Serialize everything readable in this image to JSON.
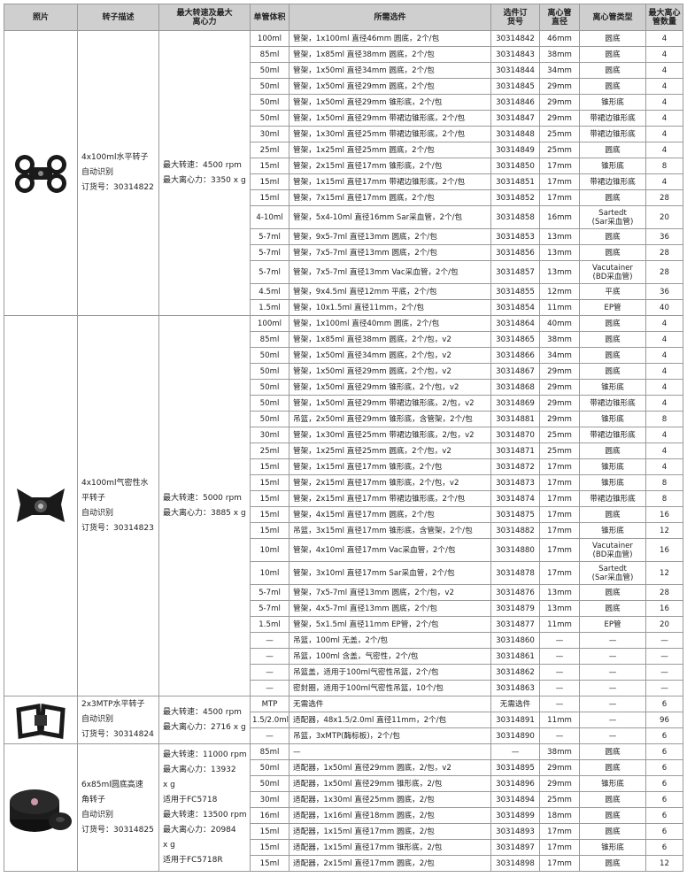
{
  "headers": [
    "照片",
    "转子描述",
    "最大转速及最大\n离心力",
    "单管体积",
    "所需选件",
    "选件订\n货号",
    "离心管\n直径",
    "离心管类型",
    "最大离心\n管数量"
  ],
  "groups": [
    {
      "photo_icon": "swing-bucket-rotor-4x100ml-image",
      "desc": "4x100ml水平转子\n自动识别\n订货号：30314822",
      "speed": "最大转速：4500 rpm\n最大离心力：3350 x g",
      "rows": [
        [
          "100ml",
          "管架，1x100ml 直径46mm 圆底，2个/包",
          "30314842",
          "46mm",
          "圆底",
          "4"
        ],
        [
          "85ml",
          "管架，1x85ml 直径38mm 圆底，2个/包",
          "30314843",
          "38mm",
          "圆底",
          "4"
        ],
        [
          "50ml",
          "管架，1x50ml 直径34mm 圆底，2个/包",
          "30314844",
          "34mm",
          "圆底",
          "4"
        ],
        [
          "50ml",
          "管架，1x50ml 直径29mm 圆底，2个/包",
          "30314845",
          "29mm",
          "圆底",
          "4"
        ],
        [
          "50ml",
          "管架，1x50ml 直径29mm 锥形底，2个/包",
          "30314846",
          "29mm",
          "锥形底",
          "4"
        ],
        [
          "50ml",
          "管架，1x50ml 直径29mm 带裙边锥形底，2个/包",
          "30314847",
          "29mm",
          "带裙边锥形底",
          "4"
        ],
        [
          "30ml",
          "管架，1x30ml 直径25mm 带裙边锥形底，2个/包",
          "30314848",
          "25mm",
          "带裙边锥形底",
          "4"
        ],
        [
          "25ml",
          "管架，1x25ml 直径25mm 圆底，2个/包",
          "30314849",
          "25mm",
          "圆底",
          "4"
        ],
        [
          "15ml",
          "管架，2x15ml 直径17mm 锥形底，2个/包",
          "30314850",
          "17mm",
          "锥形底",
          "8"
        ],
        [
          "15ml",
          "管架，1x15ml 直径17mm 带裙边锥形底，2个/包",
          "30314851",
          "17mm",
          "带裙边锥形底",
          "4"
        ],
        [
          "15ml",
          "管架，7x15ml 直径17mm 圆底，2个/包",
          "30314852",
          "17mm",
          "圆底",
          "28"
        ],
        [
          "4-10ml",
          "管架，5x4-10ml 直径16mm Sar采血管，2个/包",
          "30314858",
          "16mm",
          "Sartedt\n(Sar采血管)",
          "20"
        ],
        [
          "5-7ml",
          "管架，9x5-7ml 直径13mm 圆底，2个/包",
          "30314853",
          "13mm",
          "圆底",
          "36"
        ],
        [
          "5-7ml",
          "管架，7x5-7ml 直径13mm 圆底，2个/包",
          "30314856",
          "13mm",
          "圆底",
          "28"
        ],
        [
          "5-7ml",
          "管架，7x5-7ml 直径13mm Vac采血管，2个/包",
          "30314857",
          "13mm",
          "Vacutainer\n(BD采血管)",
          "28"
        ],
        [
          "4.5ml",
          "管架，9x4.5ml 直径12mm 平底，2个/包",
          "30314855",
          "12mm",
          "平底",
          "36"
        ],
        [
          "1.5ml",
          "管架，10x1.5ml 直径11mm，2个/包",
          "30314854",
          "11mm",
          "EP管",
          "40"
        ]
      ]
    },
    {
      "photo_icon": "aerosol-tight-rotor-image",
      "desc": "4x100ml气密性水\n平转子\n自动识别\n订货号：30314823",
      "speed": "最大转速：5000 rpm\n最大离心力：3885 x g",
      "rows": [
        [
          "100ml",
          "管架，1x100ml 直径40mm 圆底，2个/包",
          "30314864",
          "40mm",
          "圆底",
          "4"
        ],
        [
          "85ml",
          "管架，1x85ml 直径38mm 圆底，2个/包，v2",
          "30314865",
          "38mm",
          "圆底",
          "4"
        ],
        [
          "50ml",
          "管架，1x50ml 直径34mm 圆底，2个/包，v2",
          "30314866",
          "34mm",
          "圆底",
          "4"
        ],
        [
          "50ml",
          "管架，1x50ml 直径29mm 圆底，2个/包，v2",
          "30314867",
          "29mm",
          "圆底",
          "4"
        ],
        [
          "50ml",
          "管架，1x50ml 直径29mm 锥形底，2个/包，v2",
          "30314868",
          "29mm",
          "锥形底",
          "4"
        ],
        [
          "50ml",
          "管架，1x50ml 直径29mm 带裙边锥形底，2/包，v2",
          "30314869",
          "29mm",
          "带裙边锥形底",
          "4"
        ],
        [
          "50ml",
          "吊篮，2x50ml 直径29mm 锥形底，含管架，2个/包",
          "30314881",
          "29mm",
          "锥形底",
          "8"
        ],
        [
          "30ml",
          "管架，1x30ml 直径25mm 带裙边锥形底，2/包，v2",
          "30314870",
          "25mm",
          "带裙边锥形底",
          "4"
        ],
        [
          "25ml",
          "管架，1x25ml 直径25mm 圆底，2个/包，v2",
          "30314871",
          "25mm",
          "圆底",
          "4"
        ],
        [
          "15ml",
          "管架，1x15ml 直径17mm 锥形底，2个/包",
          "30314872",
          "17mm",
          "锥形底",
          "4"
        ],
        [
          "15ml",
          "管架，2x15ml 直径17mm 锥形底，2个/包，v2",
          "30314873",
          "17mm",
          "锥形底",
          "8"
        ],
        [
          "15ml",
          "管架，2x15ml 直径17mm 带裙边锥形底，2个/包",
          "30314874",
          "17mm",
          "带裙边锥形底",
          "8"
        ],
        [
          "15ml",
          "管架，4x15ml 直径17mm 圆底，2个/包",
          "30314875",
          "17mm",
          "圆底",
          "16"
        ],
        [
          "15ml",
          "吊篮，3x15ml 直径17mm 锥形底，含管架，2个/包",
          "30314882",
          "17mm",
          "锥形底",
          "12"
        ],
        [
          "10ml",
          "管架，4x10ml 直径17mm Vac采血管，2个/包",
          "30314880",
          "17mm",
          "Vacutainer\n(BD采血管)",
          "16"
        ],
        [
          "10ml",
          "管架，3x10ml 直径17mm Sar采血管，2个/包",
          "30314878",
          "17mm",
          "Sartedt\n(Sar采血管)",
          "12"
        ],
        [
          "5-7ml",
          "管架，7x5-7ml 直径13mm 圆底，2个/包，v2",
          "30314876",
          "13mm",
          "圆底",
          "28"
        ],
        [
          "5-7ml",
          "管架，4x5-7ml 直径13mm 圆底，2个/包",
          "30314879",
          "13mm",
          "圆底",
          "16"
        ],
        [
          "1.5ml",
          "管架，5x1.5ml 直径11mm EP管，2个/包",
          "30314877",
          "11mm",
          "EP管",
          "20"
        ],
        [
          "—",
          "吊篮，100ml 无盖，2个/包",
          "30314860",
          "—",
          "—",
          "—"
        ],
        [
          "—",
          "吊篮，100ml 含盖，气密性，2个/包",
          "30314861",
          "—",
          "—",
          "—"
        ],
        [
          "—",
          "吊篮盖，适用于100ml气密性吊篮，2个/包",
          "30314862",
          "—",
          "—",
          "—"
        ],
        [
          "—",
          "密封圈，适用于100ml气密性吊篮，10个/包",
          "30314863",
          "—",
          "—",
          "—"
        ]
      ]
    },
    {
      "photo_icon": "mtp-rotor-image",
      "desc": "2x3MTP水平转子\n自动识别\n订货号：30314824",
      "speed": "最大转速：4500 rpm\n最大离心力：2716 x g",
      "rows": [
        [
          "MTP",
          "无需选件",
          "无需选件",
          "—",
          "—",
          "6"
        ],
        [
          "1.5/2.0ml",
          "适配器，48x1.5/2.0ml 直径11mm，2个/包",
          "30314891",
          "11mm",
          "—",
          "96"
        ],
        [
          "—",
          "吊篮，3xMTP(酶标板)，2个/包",
          "30314890",
          "—",
          "—",
          "6"
        ]
      ]
    },
    {
      "photo_icon": "fixed-angle-rotor-image",
      "desc": "6x85ml圆底高速\n角转子\n自动识别\n订货号：30314825",
      "speed": "最大转速：11000 rpm\n最大离心力：13932\nx g\n适用于FC5718\n最大转速：13500 rpm\n最大离心力：20984\nx g\n适用于FC5718R",
      "rows": [
        [
          "85ml",
          "—",
          "—",
          "38mm",
          "圆底",
          "6"
        ],
        [
          "50ml",
          "适配器，1x50ml 直径29mm 圆底，2/包，v2",
          "30314895",
          "29mm",
          "圆底",
          "6"
        ],
        [
          "50ml",
          "适配器，1x50ml 直径29mm 锥形底，2/包",
          "30314896",
          "29mm",
          "锥形底",
          "6"
        ],
        [
          "30ml",
          "适配器，1x30ml 直径25mm 圆底，2/包",
          "30314894",
          "25mm",
          "圆底",
          "6"
        ],
        [
          "16ml",
          "适配器，1x16ml 直径18mm 圆底，2/包",
          "30314899",
          "18mm",
          "圆底",
          "6"
        ],
        [
          "15ml",
          "适配器，1x15ml 直径17mm 圆底，2/包",
          "30314893",
          "17mm",
          "圆底",
          "6"
        ],
        [
          "15ml",
          "适配器，1x15ml 直径17mm 锥形底，2/包",
          "30314897",
          "17mm",
          "锥形底",
          "6"
        ],
        [
          "15ml",
          "适配器，2x15ml 直径17mm 圆底，2/包",
          "30314898",
          "17mm",
          "圆底",
          "12"
        ]
      ]
    }
  ]
}
